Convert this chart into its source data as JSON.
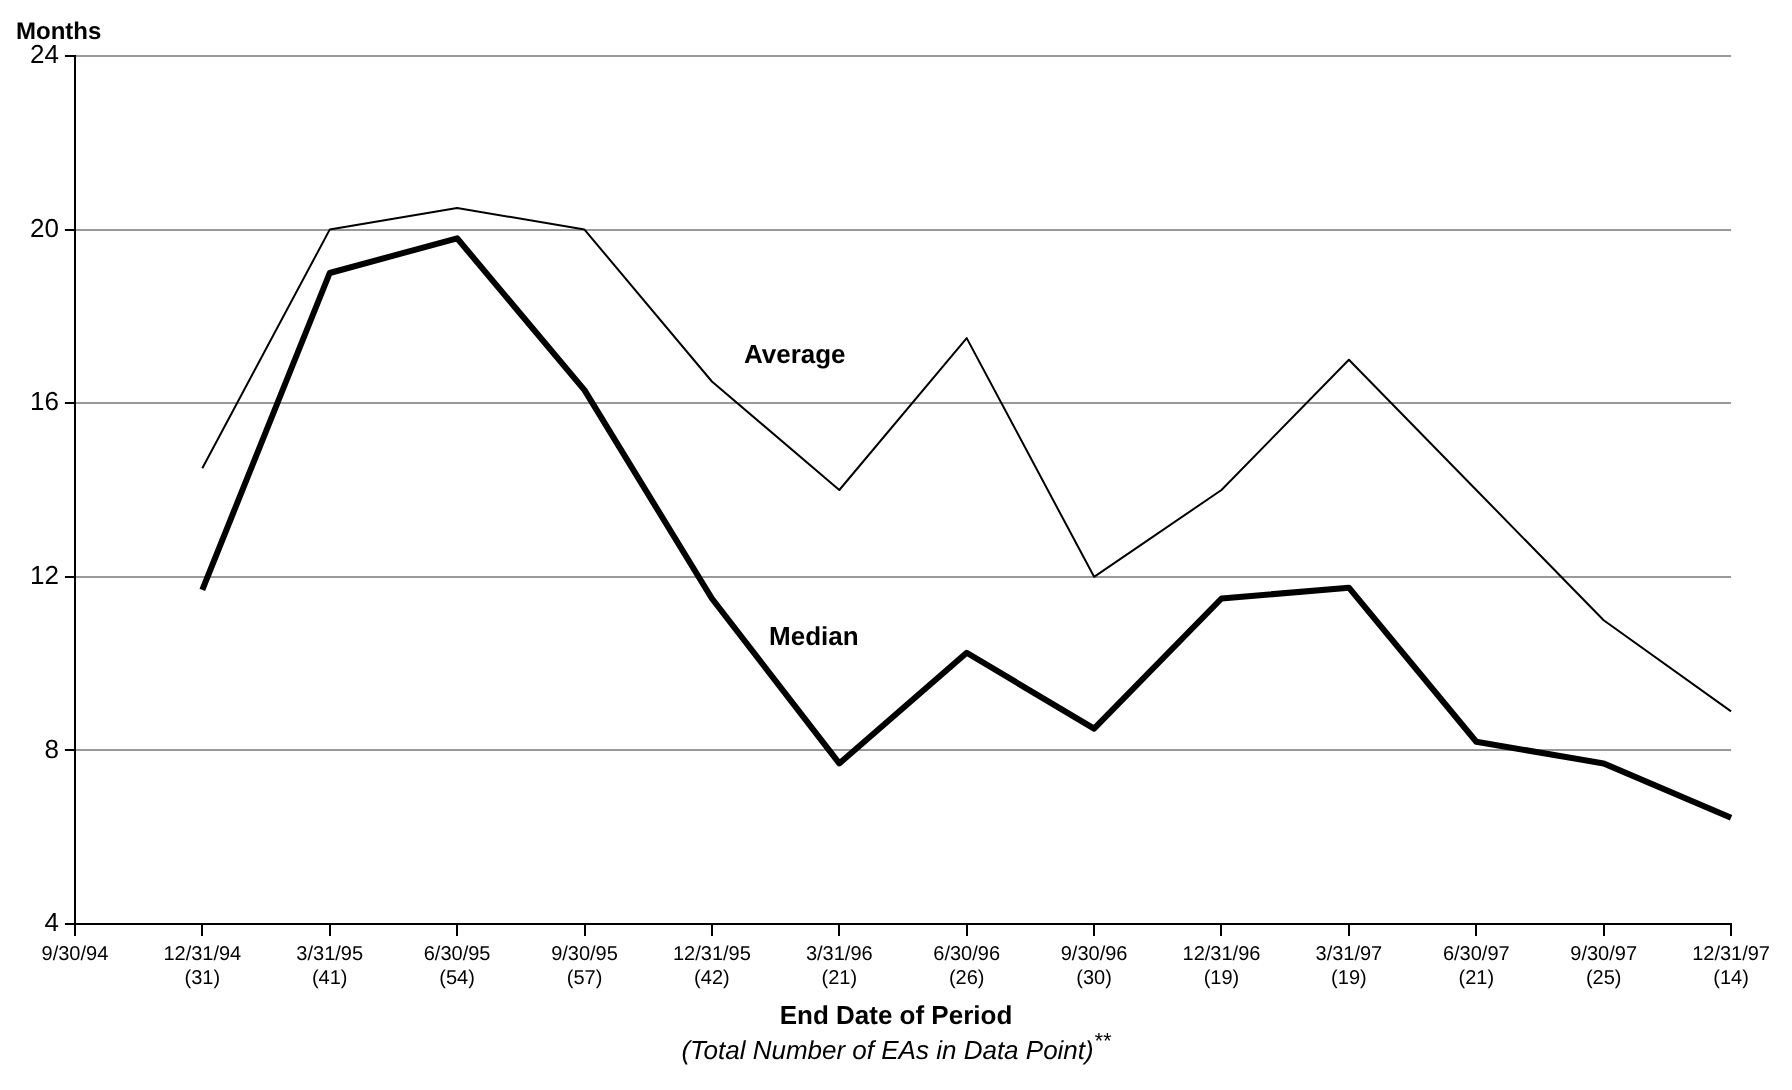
{
  "chart_data": {
    "type": "line",
    "ylabel": "Months",
    "xlabel": "End Date of Period",
    "annotations": [
      "(Total Number of EAs in Data Point)$^{**}$"
    ],
    "categories": [
      "9/30/94",
      "12/31/94\n(31)",
      "3/31/95\n(41)",
      "6/30/95\n(54)",
      "9/30/95\n(57)",
      "12/31/95\n(42)",
      "3/31/96\n(21)",
      "6/30/96\n(26)",
      "9/30/96\n(30)",
      "12/31/96\n(19)",
      "3/31/97\n(19)",
      "6/30/97\n(21)",
      "9/30/97\n(25)",
      "12/31/97\n(14)"
    ],
    "series": [
      {
        "name": "Average",
        "color": "#000000",
        "values": [
          null,
          14.5,
          20,
          20.5,
          20,
          16.5,
          14,
          17.5,
          12,
          14,
          17,
          14,
          11,
          8.9
        ]
      },
      {
        "name": "Median",
        "color": "#000000",
        "values": [
          null,
          11.7,
          19,
          19.8,
          16.3,
          11.5,
          7.7,
          10.25,
          8.5,
          11.5,
          11.75,
          8.2,
          7.7,
          6.45
        ]
      }
    ],
    "ylim": [
      4,
      24
    ],
    "yticks": [
      4,
      8,
      12,
      16,
      20,
      24
    ],
    "grid": "y",
    "marker": "none",
    "legend": false
  }
}
